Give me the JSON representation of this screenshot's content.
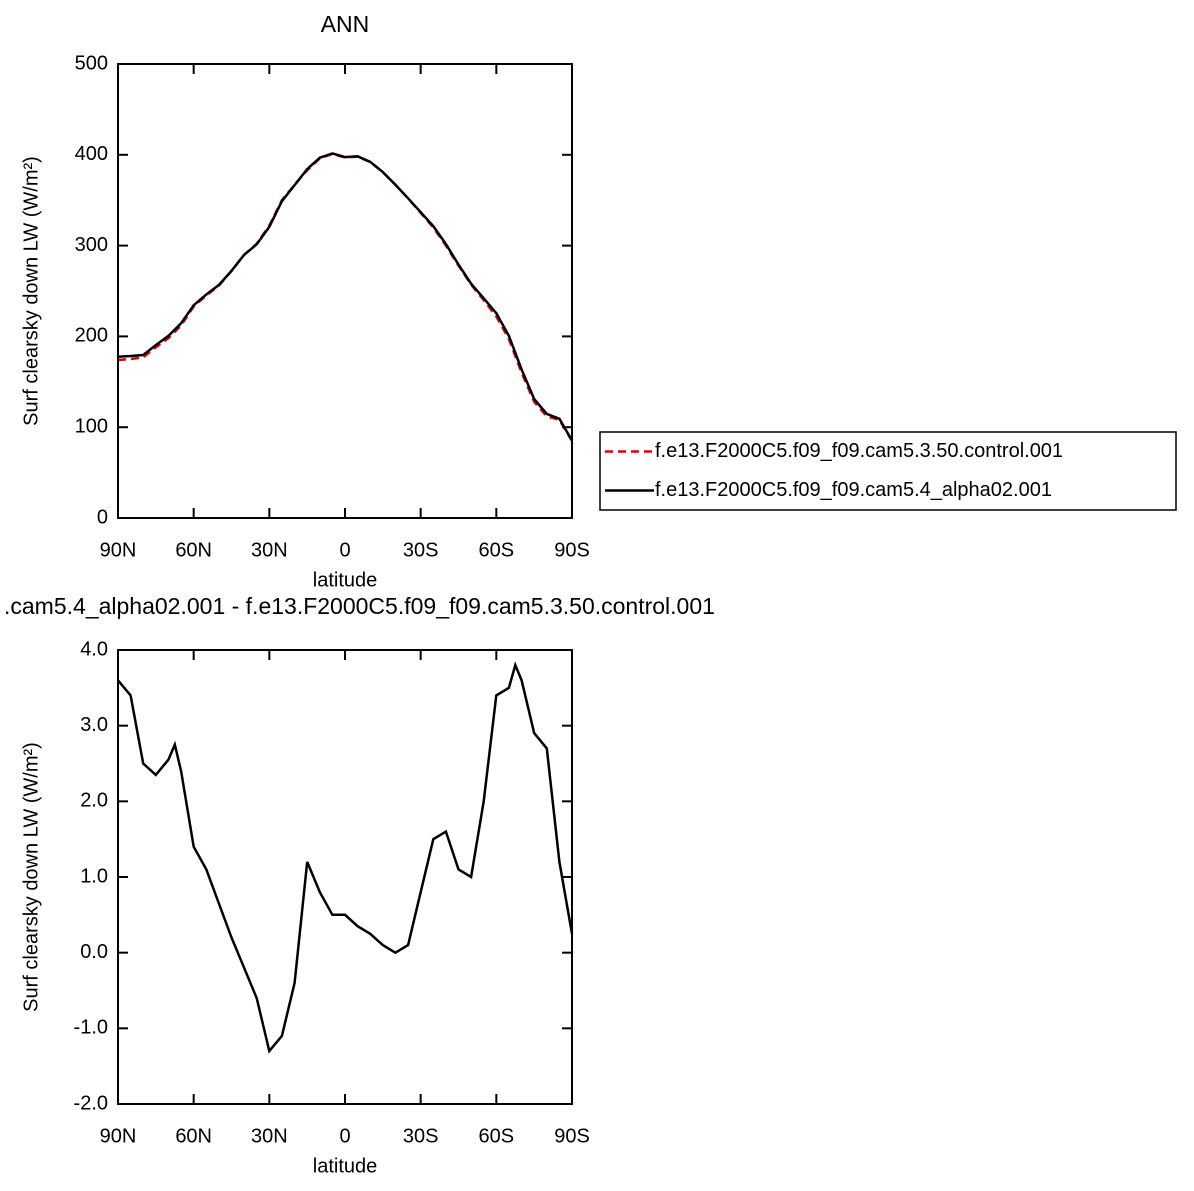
{
  "chart_data": [
    {
      "type": "line",
      "title": "ANN",
      "xlabel": "latitude",
      "ylabel": "Surf clearsky down LW (W/m²)",
      "x": [
        90,
        85,
        80,
        75,
        70,
        65,
        60,
        55,
        50,
        45,
        40,
        35,
        30,
        25,
        20,
        15,
        10,
        5,
        0,
        -5,
        -10,
        -15,
        -20,
        -25,
        -30,
        -35,
        -40,
        -45,
        -50,
        -55,
        -60,
        -65,
        -70,
        -75,
        -80,
        -85,
        -90
      ],
      "series": [
        {
          "name": "f.e13.F2000C5.f09_f09.cam5.3.50.control.001",
          "color": "#e00000",
          "dash": true,
          "values": [
            174,
            175,
            177,
            188,
            198,
            212,
            233,
            245,
            256,
            272,
            290,
            302,
            322,
            350,
            367,
            383,
            396,
            401,
            397,
            398,
            392,
            381,
            367,
            352,
            336,
            320,
            300,
            278,
            257,
            240,
            222,
            197,
            160,
            128,
            112,
            108,
            85
          ]
        },
        {
          "name": "f.e13.F2000C5.f09_f09.cam5.4_alpha02.001",
          "color": "#000000",
          "dash": false,
          "values": [
            177.6,
            178.4,
            179.5,
            190.4,
            200.6,
            214.4,
            234.4,
            246.1,
            256.7,
            272.2,
            289.8,
            301.4,
            320.7,
            348.9,
            366.6,
            384.2,
            396.8,
            401.5,
            397.5,
            398.4,
            392.3,
            381.1,
            367,
            352.1,
            336.8,
            321.5,
            301.6,
            279.1,
            258,
            242,
            225.5,
            200.5,
            163.5,
            130.9,
            114.7,
            109.2,
            85.3
          ]
        }
      ],
      "xlim": [
        90,
        -90
      ],
      "xticks": [
        {
          "value": 90,
          "label": "90N"
        },
        {
          "value": 60,
          "label": "60N"
        },
        {
          "value": 30,
          "label": "30N"
        },
        0,
        {
          "value": -30,
          "label": "30S"
        },
        {
          "value": -60,
          "label": "60S"
        },
        {
          "value": -90,
          "label": "90S"
        }
      ],
      "ylim": [
        0,
        500
      ],
      "yticks": [
        0,
        100,
        200,
        300,
        400,
        500
      ],
      "legend": "right"
    },
    {
      "type": "line",
      "title": ".cam5.4_alpha02.001 - f.e13.F2000C5.f09_f09.cam5.3.50.control.001",
      "xlabel": "latitude",
      "ylabel": "Surf clearsky down LW (W/m²)",
      "x": [
        90,
        85,
        80,
        75,
        70,
        67.5,
        65,
        60,
        55,
        50,
        45,
        40,
        35,
        30,
        25,
        20,
        15,
        10,
        5,
        0,
        -5,
        -10,
        -15,
        -20,
        -25,
        -30,
        -35,
        -40,
        -45,
        -50,
        -55,
        -60,
        -65,
        -67.5,
        -70,
        -75,
        -80,
        -85,
        -90
      ],
      "series": [
        {
          "color": "#000000",
          "dash": false,
          "values": [
            3.6,
            3.4,
            2.5,
            2.35,
            2.55,
            2.75,
            2.4,
            1.4,
            1.1,
            0.65,
            0.2,
            -0.2,
            -0.6,
            -1.3,
            -1.1,
            -0.4,
            1.2,
            0.8,
            0.5,
            0.5,
            0.35,
            0.25,
            0.1,
            0.0,
            0.1,
            0.8,
            1.5,
            1.6,
            1.1,
            1.0,
            2.0,
            3.4,
            3.5,
            3.8,
            3.6,
            2.9,
            2.7,
            1.2,
            0.25
          ]
        }
      ],
      "xlim": [
        90,
        -90
      ],
      "xticks": [
        {
          "value": 90,
          "label": "90N"
        },
        {
          "value": 60,
          "label": "60N"
        },
        {
          "value": 30,
          "label": "30N"
        },
        0,
        {
          "value": -30,
          "label": "30S"
        },
        {
          "value": -60,
          "label": "60S"
        },
        {
          "value": -90,
          "label": "90S"
        }
      ],
      "ylim": [
        -2,
        4
      ],
      "yticks": [
        {
          "value": -2,
          "label": "-2.0"
        },
        {
          "value": -1,
          "label": "-1.0"
        },
        {
          "value": 0,
          "label": "0.0"
        },
        {
          "value": 1,
          "label": "1.0"
        },
        {
          "value": 2,
          "label": "2.0"
        },
        {
          "value": 3,
          "label": "3.0"
        },
        {
          "value": 4,
          "label": "4.0"
        }
      ]
    }
  ]
}
